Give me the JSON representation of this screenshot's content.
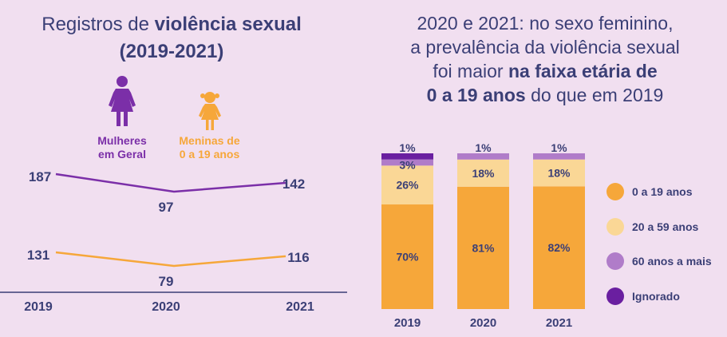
{
  "left": {
    "title_plain": "Registros de ",
    "title_bold": "violência sexual",
    "title_line2": "(2019-2021)",
    "label_women_line1": "Mulheres",
    "label_women_line2": "em Geral",
    "label_girls_line1": "Meninas de",
    "label_girls_line2": "0 a 19 anos",
    "woman_icon": "woman-figure-icon",
    "girl_icon": "girl-figure-icon"
  },
  "right": {
    "title_line1": "2020 e 2021: no sexo feminino,",
    "title_line2": "a prevalência  da violência sexual",
    "title_line3_plain": "foi maior ",
    "title_line3_bold": "na faixa etária de",
    "title_line4_bold": "0 a 19 anos",
    "title_line4_plain": " do que em 2019"
  },
  "colors": {
    "background": "#f1dff0",
    "text": "#3b3f76",
    "purple": "#7b2fa8",
    "orange": "#f6a73a",
    "light_orange": "#fad796",
    "light_purple": "#b07cc9",
    "dark_purple": "#6a1fa0"
  },
  "chart_data": [
    {
      "type": "line",
      "title": "Registros de violência sexual (2019-2021)",
      "categories": [
        "2019",
        "2020",
        "2021"
      ],
      "series": [
        {
          "name": "Mulheres em Geral",
          "values": [
            187,
            97,
            142
          ],
          "color": "#7b2fa8"
        },
        {
          "name": "Meninas de 0 a 19 anos",
          "values": [
            131,
            79,
            116
          ],
          "color": "#f6a73a"
        }
      ],
      "grid": false
    },
    {
      "type": "bar",
      "stacked": true,
      "categories": [
        "2019",
        "2020",
        "2021"
      ],
      "series": [
        {
          "name": "0 a 19 anos",
          "values": [
            70,
            81,
            82
          ],
          "labels": [
            "70%",
            "81%",
            "82%"
          ],
          "color": "#f6a73a"
        },
        {
          "name": "20 a 59 anos",
          "values": [
            26,
            18,
            18
          ],
          "labels": [
            "26%",
            "18%",
            "18%"
          ],
          "color": "#fad796"
        },
        {
          "name": "60 anos a mais",
          "values": [
            3,
            1,
            1
          ],
          "labels": [
            "3%",
            "1%",
            "1%"
          ],
          "color": "#b07cc9"
        },
        {
          "name": "Ignorado",
          "values": [
            1,
            0,
            0
          ],
          "labels": [
            "1%",
            "",
            ""
          ],
          "color": "#6a1fa0"
        }
      ],
      "ylim": [
        0,
        100
      ],
      "legend_position": "right",
      "grid": false
    }
  ]
}
